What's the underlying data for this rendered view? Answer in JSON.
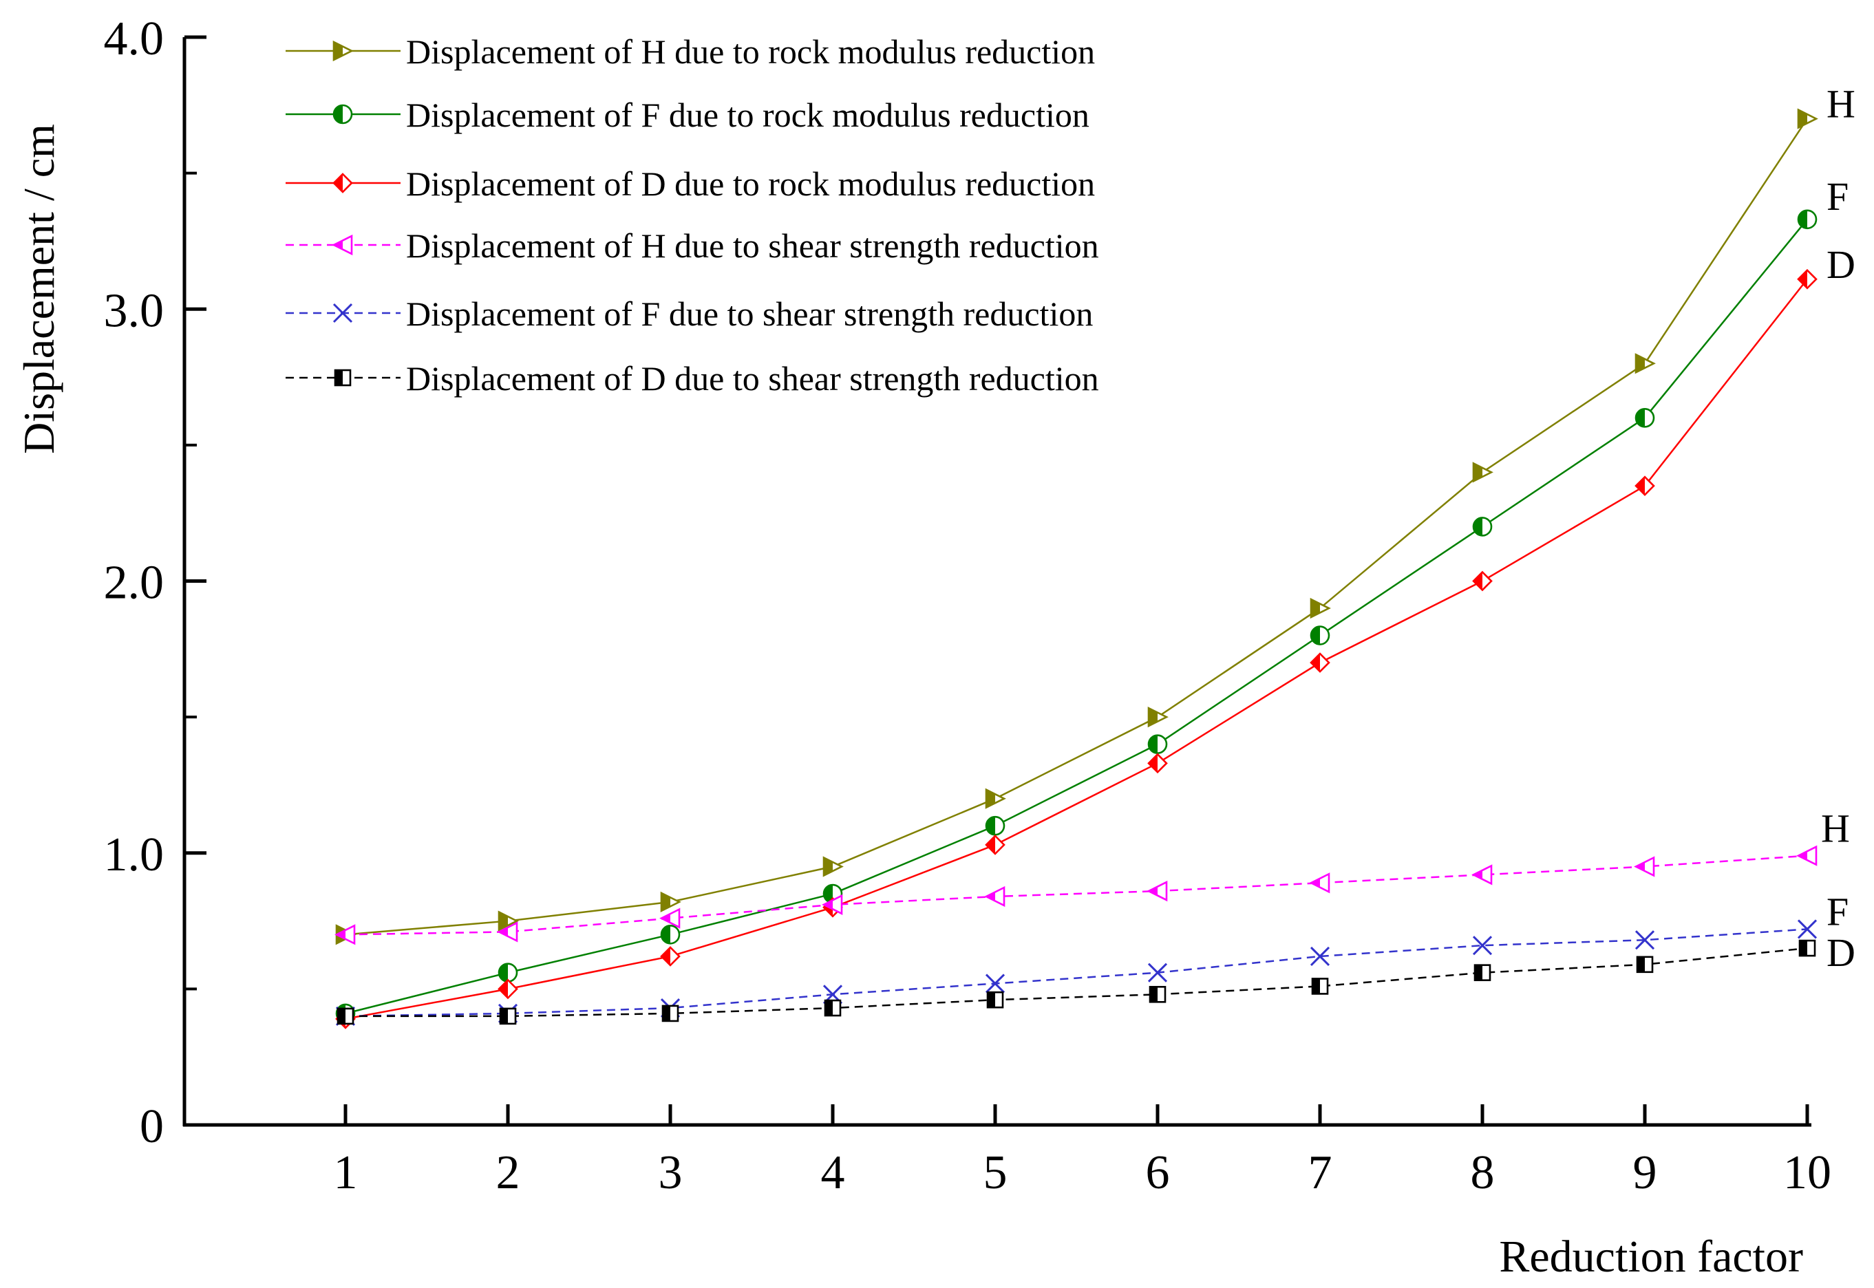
{
  "chart_data": {
    "type": "line",
    "title": "",
    "xlabel": "Reduction factor",
    "ylabel": "Displacement / cm",
    "x": [
      1,
      2,
      3,
      4,
      5,
      6,
      7,
      8,
      9,
      10
    ],
    "x_tick_labels": [
      "1",
      "2",
      "3",
      "4",
      "5",
      "6",
      "7",
      "8",
      "9",
      "10"
    ],
    "ylim": [
      0,
      4.0
    ],
    "y_tick_labels": [
      {
        "value": 0,
        "label": "0"
      },
      {
        "value": 1.0,
        "label": "1.0"
      },
      {
        "value": 2.0,
        "label": "2.0"
      },
      {
        "value": 3.0,
        "label": "3.0"
      },
      {
        "value": 4.0,
        "label": "4.0"
      }
    ],
    "grid": false,
    "legend_position": "top-left",
    "series": [
      {
        "name": "Displacement of H due to rock modulus reduction",
        "color": "#808000",
        "dash": "solid",
        "marker": "triangle-right",
        "end_label": "H",
        "values": [
          0.7,
          0.75,
          0.82,
          0.95,
          1.2,
          1.5,
          1.9,
          2.4,
          2.8,
          3.7
        ]
      },
      {
        "name": "Displacement of F due to rock modulus reduction",
        "color": "#008000",
        "dash": "solid",
        "marker": "circle-half",
        "end_label": "F",
        "values": [
          0.41,
          0.56,
          0.7,
          0.85,
          1.1,
          1.4,
          1.8,
          2.2,
          2.6,
          3.33
        ]
      },
      {
        "name": "Displacement of D due to rock modulus reduction",
        "color": "#ff0000",
        "dash": "solid",
        "marker": "diamond-half",
        "end_label": "D",
        "values": [
          0.39,
          0.5,
          0.62,
          0.8,
          1.03,
          1.33,
          1.7,
          2.0,
          2.35,
          3.11
        ]
      },
      {
        "name": "Displacement of H due to shear strength reduction",
        "color": "#ff00ff",
        "dash": "dashed",
        "marker": "triangle-left",
        "end_label": "H",
        "values": [
          0.7,
          0.71,
          0.76,
          0.81,
          0.84,
          0.86,
          0.89,
          0.92,
          0.95,
          0.99
        ]
      },
      {
        "name": "Displacement of F due to shear strength reduction",
        "color": "#3333cc",
        "dash": "dashed",
        "marker": "cross",
        "end_label": "F",
        "values": [
          0.4,
          0.41,
          0.43,
          0.48,
          0.52,
          0.56,
          0.62,
          0.66,
          0.68,
          0.72
        ]
      },
      {
        "name": "Displacement of D due to shear strength reduction",
        "color": "#000000",
        "dash": "dashed",
        "marker": "square-half",
        "end_label": "D",
        "values": [
          0.4,
          0.4,
          0.41,
          0.43,
          0.46,
          0.48,
          0.51,
          0.56,
          0.59,
          0.65
        ]
      }
    ]
  }
}
